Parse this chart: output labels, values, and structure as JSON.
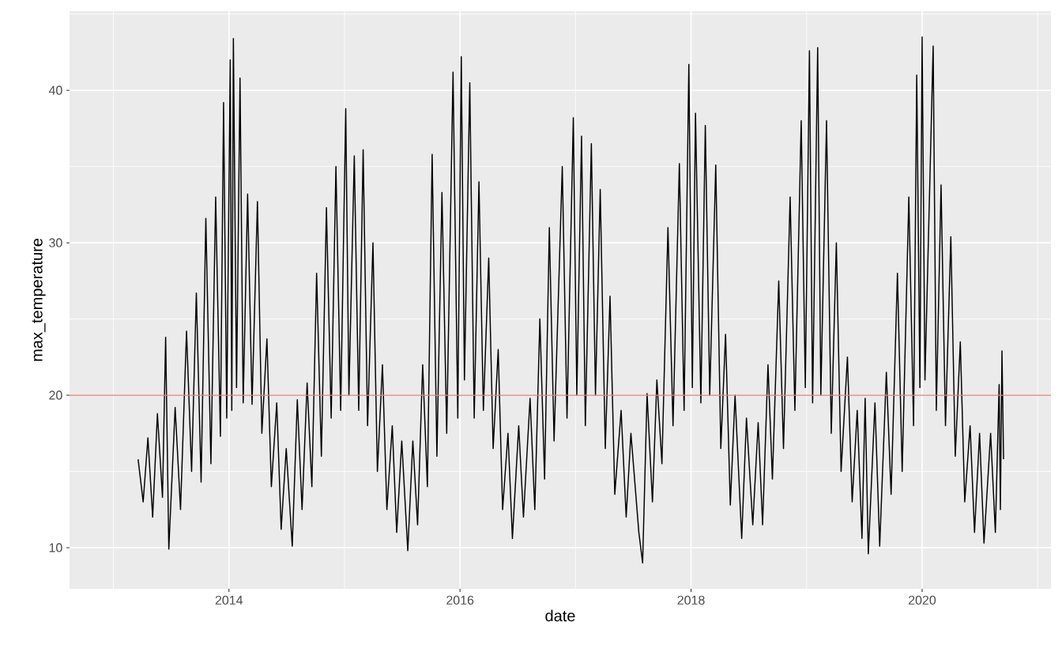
{
  "chart_data": {
    "type": "line",
    "xlabel": "date",
    "ylabel": "max_temperature",
    "xlim": [
      "2012-08-15",
      "2021-02-12"
    ],
    "ylim": [
      7.3,
      45.2
    ],
    "xticks": [
      {
        "value": "2013",
        "label": null
      },
      "2014",
      {
        "value": "2015",
        "label": null
      },
      "2016",
      {
        "value": "2017",
        "label": null
      },
      "2018",
      {
        "value": "2019",
        "label": null
      },
      "2020",
      {
        "value": "2021",
        "label": null
      }
    ],
    "yticks": [
      10,
      {
        "value": 15,
        "label": null
      },
      20,
      {
        "value": 25,
        "label": null
      },
      30,
      {
        "value": 35,
        "label": null
      },
      40,
      {
        "value": 45,
        "label": null
      }
    ],
    "grid": true,
    "ref_lines": [
      {
        "axis": "y",
        "value": 20,
        "color": "#f8766d"
      }
    ],
    "series": [
      {
        "color": "#000000",
        "x": [
          "2013-03-20",
          "2013-04-05",
          "2013-04-20",
          "2013-05-05",
          "2013-05-20",
          "2013-06-05",
          "2013-06-15",
          "2013-06-25",
          "2013-07-15",
          "2013-08-01",
          "2013-08-20",
          "2013-09-05",
          "2013-09-20",
          "2013-10-05",
          "2013-10-20",
          "2013-11-05",
          "2013-11-20",
          "2013-12-05",
          "2013-12-15",
          "2013-12-25",
          "2014-01-05",
          "2014-01-10",
          "2014-01-15",
          "2014-01-25",
          "2014-02-05",
          "2014-02-15",
          "2014-03-01",
          "2014-03-15",
          "2014-04-01",
          "2014-04-15",
          "2014-05-01",
          "2014-05-15",
          "2014-06-01",
          "2014-06-15",
          "2014-07-01",
          "2014-07-20",
          "2014-08-05",
          "2014-08-20",
          "2014-09-05",
          "2014-09-20",
          "2014-10-05",
          "2014-10-20",
          "2014-11-05",
          "2014-11-20",
          "2014-12-05",
          "2014-12-20",
          "2015-01-05",
          "2015-01-15",
          "2015-02-01",
          "2015-02-15",
          "2015-03-01",
          "2015-03-15",
          "2015-04-01",
          "2015-04-15",
          "2015-05-01",
          "2015-05-15",
          "2015-06-01",
          "2015-06-15",
          "2015-07-01",
          "2015-07-20",
          "2015-08-05",
          "2015-08-20",
          "2015-09-05",
          "2015-09-20",
          "2015-10-05",
          "2015-10-20",
          "2015-11-05",
          "2015-11-20",
          "2015-12-10",
          "2015-12-25",
          "2016-01-05",
          "2016-01-15",
          "2016-02-01",
          "2016-02-15",
          "2016-03-01",
          "2016-03-15",
          "2016-04-01",
          "2016-04-15",
          "2016-05-01",
          "2016-05-15",
          "2016-06-01",
          "2016-06-15",
          "2016-07-05",
          "2016-07-20",
          "2016-08-10",
          "2016-08-25",
          "2016-09-10",
          "2016-09-25",
          "2016-10-10",
          "2016-10-25",
          "2016-11-20",
          "2016-12-05",
          "2016-12-25",
          "2017-01-05",
          "2017-01-20",
          "2017-02-01",
          "2017-02-20",
          "2017-03-05",
          "2017-03-20",
          "2017-04-05",
          "2017-04-20",
          "2017-05-05",
          "2017-05-25",
          "2017-06-10",
          "2017-06-25",
          "2017-07-20",
          "2017-08-01",
          "2017-08-15",
          "2017-09-01",
          "2017-09-15",
          "2017-10-01",
          "2017-10-20",
          "2017-11-05",
          "2017-11-25",
          "2017-12-10",
          "2017-12-25",
          "2018-01-05",
          "2018-01-15",
          "2018-02-01",
          "2018-02-15",
          "2018-03-01",
          "2018-03-20",
          "2018-04-05",
          "2018-04-20",
          "2018-05-05",
          "2018-05-20",
          "2018-06-10",
          "2018-06-25",
          "2018-07-15",
          "2018-08-01",
          "2018-08-15",
          "2018-09-01",
          "2018-09-15",
          "2018-10-05",
          "2018-10-20",
          "2018-11-10",
          "2018-11-25",
          "2018-12-15",
          "2018-12-28",
          "2019-01-10",
          "2019-01-20",
          "2019-02-05",
          "2019-02-15",
          "2019-03-05",
          "2019-03-20",
          "2019-04-05",
          "2019-04-20",
          "2019-05-10",
          "2019-05-25",
          "2019-06-10",
          "2019-06-25",
          "2019-07-05",
          "2019-07-15",
          "2019-08-05",
          "2019-08-20",
          "2019-09-10",
          "2019-09-25",
          "2019-10-15",
          "2019-10-30",
          "2019-11-20",
          "2019-12-05",
          "2019-12-15",
          "2019-12-25",
          "2020-01-01",
          "2020-01-10",
          "2020-02-05",
          "2020-02-15",
          "2020-03-01",
          "2020-03-15",
          "2020-04-01",
          "2020-04-15",
          "2020-05-01",
          "2020-05-15",
          "2020-06-01",
          "2020-06-15",
          "2020-07-01",
          "2020-07-15",
          "2020-08-05",
          "2020-08-20",
          "2020-09-01",
          "2020-09-05",
          "2020-09-10",
          "2020-09-15"
        ],
        "values": [
          15.8,
          13.0,
          17.2,
          12.0,
          18.8,
          13.3,
          23.8,
          9.9,
          19.2,
          12.5,
          24.2,
          15.0,
          26.7,
          14.3,
          31.6,
          15.5,
          33.0,
          17.3,
          39.2,
          18.5,
          42.0,
          19.0,
          43.4,
          20.5,
          40.8,
          19.5,
          33.2,
          19.4,
          32.7,
          17.5,
          23.7,
          14.0,
          19.5,
          11.2,
          16.5,
          10.1,
          19.7,
          12.5,
          20.8,
          14.0,
          28.0,
          16.0,
          32.3,
          18.5,
          35.0,
          19.0,
          38.8,
          20.0,
          35.7,
          19.0,
          36.1,
          18.0,
          30.0,
          15.0,
          22.0,
          12.5,
          18.0,
          11.0,
          17.0,
          9.8,
          17.0,
          11.5,
          22.0,
          14.0,
          35.8,
          16.0,
          33.3,
          17.5,
          41.2,
          18.5,
          42.2,
          21.0,
          40.5,
          18.5,
          34.0,
          19.0,
          29.0,
          16.5,
          23.0,
          12.5,
          17.5,
          10.6,
          18.0,
          12.0,
          19.8,
          12.5,
          25.0,
          14.5,
          31.0,
          17.0,
          35.0,
          18.5,
          38.2,
          20.0,
          37.0,
          18.0,
          36.5,
          20.0,
          33.5,
          16.5,
          26.5,
          13.5,
          19.0,
          12.0,
          17.5,
          11.0,
          9.0,
          20.1,
          13.0,
          21.0,
          15.5,
          31.0,
          18.0,
          35.2,
          19.0,
          41.7,
          20.5,
          38.5,
          19.5,
          37.7,
          20.0,
          35.1,
          16.5,
          24.0,
          12.8,
          20.0,
          10.6,
          18.5,
          11.5,
          18.2,
          11.5,
          22.0,
          14.5,
          27.5,
          16.5,
          33.0,
          19.0,
          38.0,
          20.5,
          42.6,
          19.5,
          42.8,
          20.0,
          38.0,
          17.5,
          30.0,
          15.0,
          22.5,
          13.0,
          19.0,
          10.6,
          19.8,
          9.6,
          19.5,
          10.1,
          21.5,
          13.5,
          28.0,
          15.0,
          33.0,
          18.0,
          41.0,
          20.5,
          43.5,
          21.0,
          42.9,
          19.0,
          33.8,
          18.0,
          30.4,
          16.0,
          23.5,
          13.0,
          18.0,
          11.0,
          17.5,
          10.3,
          17.5,
          11.0,
          20.7,
          12.5,
          22.9,
          15.8
        ]
      }
    ]
  }
}
